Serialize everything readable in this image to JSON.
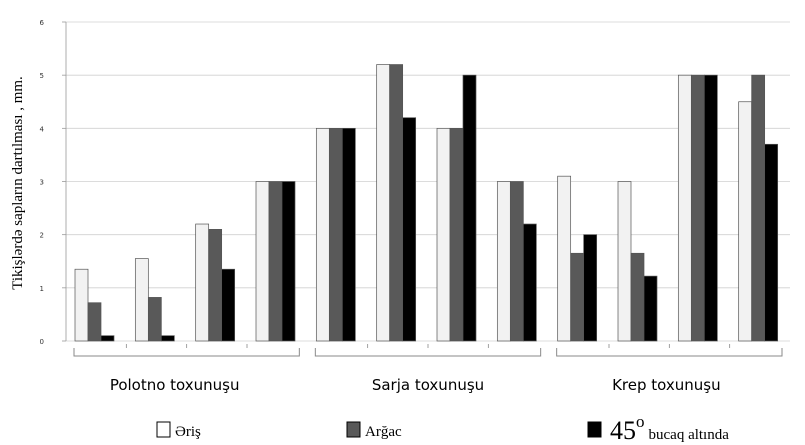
{
  "chart_data": {
    "type": "bar",
    "ylabel": "Tikişlərdə sapların dartılması , mm.",
    "ylim": [
      0,
      6
    ],
    "yticks": [
      "0",
      "1",
      "2",
      "3",
      "4",
      "5",
      "6"
    ],
    "grid": true,
    "groups": [
      "Polotno toxunuşu",
      "Sarja toxunuşu",
      "Krep toxunuşu"
    ],
    "categories_per_group": 4,
    "series": [
      {
        "name": "Əriş",
        "color": "#f2f2f2",
        "values": [
          1.35,
          1.55,
          2.2,
          3.0,
          4.0,
          5.2,
          4.0,
          3.0,
          3.1,
          3.0,
          5.0,
          4.5
        ]
      },
      {
        "name": "Arğac",
        "color": "#595959",
        "values": [
          0.72,
          0.82,
          2.1,
          3.0,
          4.0,
          5.2,
          4.0,
          3.0,
          1.65,
          1.65,
          5.0,
          5.0
        ]
      },
      {
        "name": "45° bucaq altında",
        "color": "#000000",
        "values": [
          0.1,
          0.1,
          1.35,
          3.0,
          4.0,
          4.2,
          5.0,
          2.2,
          2.0,
          1.22,
          5.0,
          3.7
        ]
      }
    ],
    "legend": {
      "placement": "bottom",
      "items": [
        {
          "prefix": "",
          "super": "",
          "text": "Əriş"
        },
        {
          "prefix": "",
          "super": "",
          "text": "Arğac"
        },
        {
          "prefix": "45",
          "super": "o",
          "text": "bucaq altında"
        }
      ]
    }
  }
}
